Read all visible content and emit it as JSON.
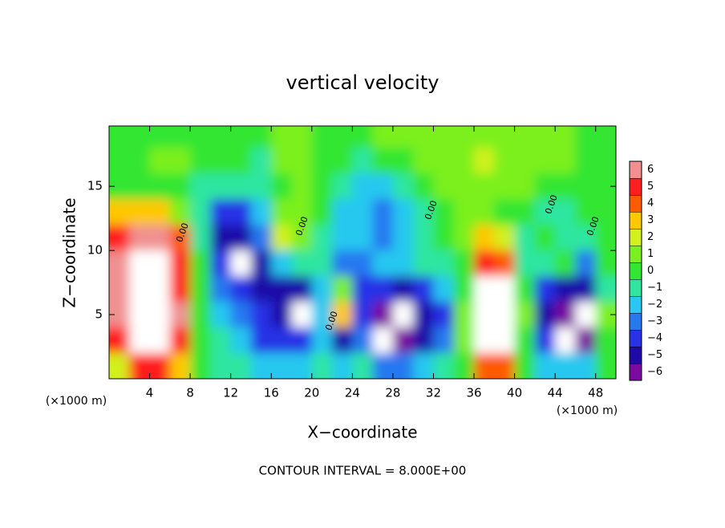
{
  "chart_data": {
    "type": "contourf",
    "title": "vertical velocity",
    "xlabel": "X−coordinate",
    "ylabel": "Z−coordinate",
    "x_unit": "(×1000 m)",
    "footer": "CONTOUR INTERVAL = 8.000E+00",
    "xlim": [
      0,
      50
    ],
    "ylim": [
      0,
      19.7
    ],
    "xticks": [
      4,
      8,
      12,
      16,
      20,
      24,
      28,
      32,
      36,
      40,
      44,
      48
    ],
    "yticks": [
      5,
      10,
      15
    ],
    "contour_label": "0.00",
    "x": [
      1,
      3,
      5,
      7,
      9,
      11,
      13,
      15,
      17,
      19,
      21,
      23,
      25,
      27,
      29,
      31,
      33,
      35,
      37,
      39,
      41,
      43,
      45,
      47,
      49
    ],
    "y": [
      19,
      17,
      15,
      13,
      11,
      9,
      7,
      5,
      3,
      1
    ],
    "z": [
      [
        0,
        0.5,
        0.5,
        0.5,
        0.5,
        0.3,
        0.3,
        0,
        0.8,
        1,
        0.5,
        0.3,
        0.5,
        0.8,
        1,
        1,
        1,
        1.5,
        1.5,
        1.5,
        1.5,
        1,
        1,
        0.5,
        0
      ],
      [
        0.3,
        0.5,
        0.8,
        0.8,
        0.5,
        0,
        0,
        -0.5,
        1,
        1.2,
        0.5,
        0,
        -0.5,
        0,
        0.5,
        1,
        1.2,
        1.5,
        1.8,
        1.5,
        1.5,
        1.2,
        0.8,
        0.5,
        0
      ],
      [
        0.5,
        0.5,
        0.5,
        0,
        -0.5,
        -0.5,
        -0.8,
        -0.5,
        0.5,
        0.8,
        0.3,
        -1,
        -1.5,
        -2,
        -0.5,
        0.5,
        0.8,
        1.2,
        1.5,
        1.3,
        1.2,
        0.5,
        0,
        0,
        0.3
      ],
      [
        3,
        3,
        3,
        1,
        -1,
        -4,
        -3.5,
        -1.5,
        1.5,
        1,
        0,
        -1.5,
        -2,
        -2.5,
        -1.5,
        -0.5,
        0,
        1,
        1,
        0.5,
        0,
        -0.5,
        -0.5,
        0,
        0
      ],
      [
        5,
        6,
        6,
        4,
        -0.5,
        -4.5,
        -5,
        -3,
        2.5,
        1.5,
        -0.5,
        -2,
        -2,
        -2.5,
        -1.5,
        -1,
        0,
        1,
        3,
        2,
        -0.5,
        0,
        -0.5,
        -0.5,
        0
      ],
      [
        6,
        7,
        7,
        5,
        0,
        -4,
        -8,
        -4.5,
        -2,
        -0.5,
        -1,
        -2.5,
        -2.5,
        -2,
        -1.5,
        -1,
        -1,
        0.5,
        5,
        4,
        -1,
        -0.5,
        0,
        -3,
        0.5
      ],
      [
        6,
        8,
        8,
        5.5,
        0.5,
        -3,
        -4,
        -4.5,
        -5,
        -5,
        -1.5,
        1,
        -4,
        -4,
        -5,
        -4,
        -1.5,
        0.5,
        7,
        7,
        0,
        -4,
        -5,
        -5,
        -0.5
      ],
      [
        6,
        9,
        8,
        6,
        0,
        -1.5,
        -3,
        -4,
        -5,
        -7,
        -2,
        3,
        -4,
        -6,
        -8,
        -5,
        -4,
        1,
        8,
        9,
        1,
        -5,
        -6,
        -8,
        1
      ],
      [
        5,
        8,
        8,
        5.5,
        0,
        -1,
        -2,
        -3.5,
        -4,
        -4,
        -2,
        -5,
        -3,
        -7,
        -5.5,
        -5,
        -3,
        1,
        8,
        8,
        0.5,
        -4,
        -7,
        -6,
        0.5
      ],
      [
        2,
        5,
        5,
        3,
        0,
        -0.5,
        -1,
        -1.5,
        -2,
        -1.5,
        -0.5,
        -1.5,
        -1,
        -2.5,
        -2.5,
        -2,
        -1,
        0.5,
        4,
        4,
        0,
        -1.5,
        -2,
        -2,
        0
      ]
    ],
    "colorbar": {
      "ticks": [
        {
          "value": -6,
          "label": "−6"
        },
        {
          "value": -5,
          "label": "−5"
        },
        {
          "value": -4,
          "label": "−4"
        },
        {
          "value": -3,
          "label": "−3"
        },
        {
          "value": -2,
          "label": "−2"
        },
        {
          "value": -1,
          "label": "−1"
        },
        0,
        1,
        2,
        3,
        4,
        5,
        6
      ],
      "colors": [
        "#7a0aa0",
        "#1e0aa8",
        "#2832e6",
        "#2878f0",
        "#28c8f0",
        "#2ee6a0",
        "#32e632",
        "#7cf01e",
        "#d2f01e",
        "#ffc800",
        "#ff5a00",
        "#ff1e1e",
        "#f09090"
      ],
      "out_of_range_color": "#ffffff"
    }
  }
}
